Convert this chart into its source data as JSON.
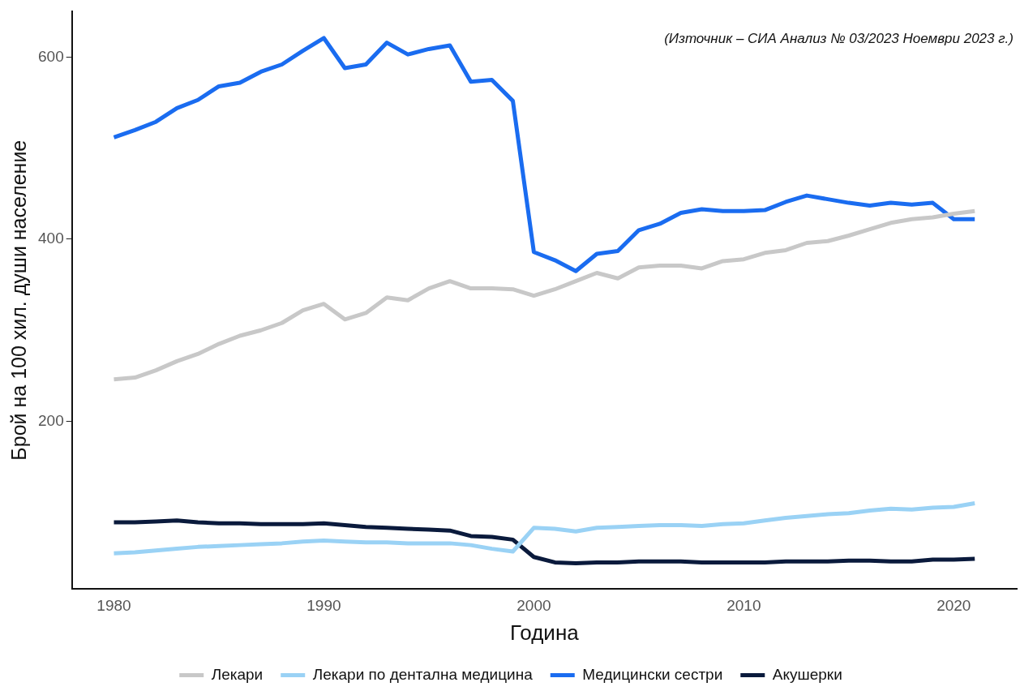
{
  "chart_data": {
    "type": "line",
    "xlabel": "Година",
    "ylabel": "Брой на 100 хил. души население",
    "annotations": [
      "(Източник – СИА Анализ № 03/2023 Ноември 2023 г.)"
    ],
    "x": [
      1980,
      1981,
      1982,
      1983,
      1984,
      1985,
      1986,
      1987,
      1988,
      1989,
      1990,
      1991,
      1992,
      1993,
      1994,
      1995,
      1996,
      1997,
      1998,
      1999,
      2000,
      2001,
      2002,
      2003,
      2004,
      2005,
      2006,
      2007,
      2008,
      2009,
      2010,
      2011,
      2012,
      2013,
      2014,
      2015,
      2016,
      2017,
      2018,
      2019,
      2020,
      2021
    ],
    "xlim": [
      1978,
      2023
    ],
    "xticks": [
      1980,
      1990,
      2000,
      2010,
      2020
    ],
    "ylim": [
      16,
      650
    ],
    "yticks": [
      200,
      400,
      600
    ],
    "grid": false,
    "legend": "bottom",
    "marker": "none",
    "line_style": "solid",
    "series": [
      {
        "name": "Лекари",
        "color": "#c8c8c8",
        "values": [
          246,
          248,
          256,
          266,
          274,
          285,
          294,
          300,
          308,
          322,
          329,
          312,
          319,
          336,
          333,
          346,
          354,
          346,
          346,
          345,
          338,
          345,
          354,
          363,
          357,
          369,
          371,
          371,
          368,
          376,
          378,
          385,
          388,
          396,
          398,
          404,
          411,
          418,
          422,
          424,
          428,
          431
        ]
      },
      {
        "name": "Лекари по дентална медицина",
        "color": "#9ad2f5",
        "values": [
          55,
          56,
          58,
          60,
          62,
          63,
          64,
          65,
          66,
          68,
          69,
          68,
          67,
          67,
          66,
          66,
          66,
          64,
          60,
          57,
          83,
          82,
          79,
          83,
          84,
          85,
          86,
          86,
          85,
          87,
          88,
          91,
          94,
          96,
          98,
          99,
          102,
          104,
          103,
          105,
          106,
          110
        ]
      },
      {
        "name": "Медицински сестри",
        "color": "#1a6cf0",
        "values": [
          512,
          520,
          529,
          544,
          553,
          568,
          572,
          584,
          592,
          607,
          621,
          588,
          592,
          616,
          603,
          609,
          613,
          573,
          575,
          552,
          386,
          377,
          365,
          384,
          387,
          410,
          417,
          429,
          433,
          431,
          431,
          432,
          441,
          448,
          444,
          440,
          437,
          440,
          438,
          440,
          422,
          422
        ]
      },
      {
        "name": "Акушерки",
        "color": "#0a1a3c",
        "values": [
          89,
          89,
          90,
          91,
          89,
          88,
          88,
          87,
          87,
          87,
          88,
          86,
          84,
          83,
          82,
          81,
          80,
          74,
          73,
          70,
          51,
          45,
          44,
          45,
          45,
          46,
          46,
          46,
          45,
          45,
          45,
          45,
          46,
          46,
          46,
          47,
          47,
          46,
          46,
          48,
          48,
          49
        ]
      }
    ]
  }
}
